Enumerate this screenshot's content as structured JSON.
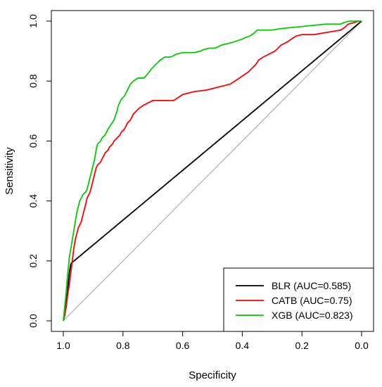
{
  "chart_data": {
    "type": "line",
    "title": "",
    "xlabel": "Specificity",
    "ylabel": "Sensitivity",
    "xlim": [
      1.0,
      0.0
    ],
    "ylim": [
      0.0,
      1.0
    ],
    "x_reversed": true,
    "x_ticks": [
      "1.0",
      "0.8",
      "0.6",
      "0.4",
      "0.2",
      "0.0"
    ],
    "y_ticks": [
      "0.0",
      "0.2",
      "0.4",
      "0.6",
      "0.8",
      "1.0"
    ],
    "grid": false,
    "legend_position": "bottom-right",
    "reference_line": {
      "from": [
        1.0,
        0.0
      ],
      "to": [
        0.0,
        1.0
      ],
      "color": "#a0a0a0"
    },
    "series": [
      {
        "name": "BLR (AUC=0.585)",
        "color": "#000000",
        "points": [
          [
            1.0,
            0.0
          ],
          [
            0.995,
            0.02
          ],
          [
            0.99,
            0.06
          ],
          [
            0.985,
            0.11
          ],
          [
            0.98,
            0.16
          ],
          [
            0.975,
            0.19
          ],
          [
            0.97,
            0.195
          ],
          [
            0.0,
            1.0
          ]
        ]
      },
      {
        "name": "CATB (AUC=0.75)",
        "color": "#ff0000",
        "points": [
          [
            1.0,
            0.0
          ],
          [
            0.995,
            0.02
          ],
          [
            0.99,
            0.05
          ],
          [
            0.985,
            0.09
          ],
          [
            0.98,
            0.12
          ],
          [
            0.975,
            0.16
          ],
          [
            0.97,
            0.2
          ],
          [
            0.965,
            0.24
          ],
          [
            0.96,
            0.27
          ],
          [
            0.955,
            0.29
          ],
          [
            0.95,
            0.31
          ],
          [
            0.94,
            0.33
          ],
          [
            0.935,
            0.35
          ],
          [
            0.93,
            0.37
          ],
          [
            0.925,
            0.39
          ],
          [
            0.92,
            0.41
          ],
          [
            0.91,
            0.43
          ],
          [
            0.905,
            0.45
          ],
          [
            0.9,
            0.47
          ],
          [
            0.895,
            0.49
          ],
          [
            0.89,
            0.51
          ],
          [
            0.885,
            0.52
          ],
          [
            0.875,
            0.53
          ],
          [
            0.87,
            0.54
          ],
          [
            0.865,
            0.55
          ],
          [
            0.86,
            0.56
          ],
          [
            0.85,
            0.57
          ],
          [
            0.845,
            0.58
          ],
          [
            0.835,
            0.59
          ],
          [
            0.83,
            0.6
          ],
          [
            0.82,
            0.61
          ],
          [
            0.81,
            0.62
          ],
          [
            0.805,
            0.63
          ],
          [
            0.795,
            0.64
          ],
          [
            0.79,
            0.65
          ],
          [
            0.785,
            0.66
          ],
          [
            0.775,
            0.67
          ],
          [
            0.765,
            0.69
          ],
          [
            0.755,
            0.7
          ],
          [
            0.745,
            0.71
          ],
          [
            0.73,
            0.72
          ],
          [
            0.71,
            0.73
          ],
          [
            0.7,
            0.735
          ],
          [
            0.63,
            0.735
          ],
          [
            0.615,
            0.745
          ],
          [
            0.6,
            0.755
          ],
          [
            0.56,
            0.765
          ],
          [
            0.52,
            0.77
          ],
          [
            0.48,
            0.78
          ],
          [
            0.44,
            0.79
          ],
          [
            0.425,
            0.8
          ],
          [
            0.41,
            0.81
          ],
          [
            0.395,
            0.82
          ],
          [
            0.38,
            0.83
          ],
          [
            0.37,
            0.84
          ],
          [
            0.355,
            0.855
          ],
          [
            0.345,
            0.87
          ],
          [
            0.33,
            0.88
          ],
          [
            0.31,
            0.89
          ],
          [
            0.29,
            0.9
          ],
          [
            0.27,
            0.92
          ],
          [
            0.25,
            0.93
          ],
          [
            0.235,
            0.94
          ],
          [
            0.22,
            0.95
          ],
          [
            0.2,
            0.955
          ],
          [
            0.16,
            0.955
          ],
          [
            0.13,
            0.96
          ],
          [
            0.1,
            0.965
          ],
          [
            0.07,
            0.97
          ],
          [
            0.055,
            0.98
          ],
          [
            0.045,
            0.99
          ],
          [
            0.025,
            0.995
          ],
          [
            0.01,
            1.0
          ],
          [
            0.0,
            1.0
          ]
        ]
      },
      {
        "name": "XGB (AUC=0.823)",
        "color": "#00cc00",
        "points": [
          [
            1.0,
            0.0
          ],
          [
            0.995,
            0.05
          ],
          [
            0.99,
            0.1
          ],
          [
            0.985,
            0.16
          ],
          [
            0.98,
            0.21
          ],
          [
            0.975,
            0.24
          ],
          [
            0.97,
            0.27
          ],
          [
            0.965,
            0.3
          ],
          [
            0.96,
            0.33
          ],
          [
            0.955,
            0.36
          ],
          [
            0.95,
            0.38
          ],
          [
            0.945,
            0.4
          ],
          [
            0.94,
            0.41
          ],
          [
            0.935,
            0.42
          ],
          [
            0.925,
            0.43
          ],
          [
            0.92,
            0.44
          ],
          [
            0.915,
            0.46
          ],
          [
            0.91,
            0.48
          ],
          [
            0.905,
            0.5
          ],
          [
            0.9,
            0.52
          ],
          [
            0.895,
            0.54
          ],
          [
            0.89,
            0.57
          ],
          [
            0.885,
            0.59
          ],
          [
            0.875,
            0.6
          ],
          [
            0.87,
            0.61
          ],
          [
            0.86,
            0.62
          ],
          [
            0.85,
            0.64
          ],
          [
            0.84,
            0.655
          ],
          [
            0.83,
            0.67
          ],
          [
            0.82,
            0.7
          ],
          [
            0.815,
            0.72
          ],
          [
            0.805,
            0.74
          ],
          [
            0.795,
            0.75
          ],
          [
            0.785,
            0.77
          ],
          [
            0.775,
            0.79
          ],
          [
            0.765,
            0.8
          ],
          [
            0.75,
            0.81
          ],
          [
            0.73,
            0.81
          ],
          [
            0.72,
            0.82
          ],
          [
            0.705,
            0.84
          ],
          [
            0.69,
            0.855
          ],
          [
            0.675,
            0.87
          ],
          [
            0.66,
            0.88
          ],
          [
            0.64,
            0.88
          ],
          [
            0.62,
            0.89
          ],
          [
            0.6,
            0.895
          ],
          [
            0.56,
            0.895
          ],
          [
            0.54,
            0.9
          ],
          [
            0.53,
            0.905
          ],
          [
            0.51,
            0.91
          ],
          [
            0.49,
            0.91
          ],
          [
            0.47,
            0.92
          ],
          [
            0.45,
            0.925
          ],
          [
            0.43,
            0.93
          ],
          [
            0.4,
            0.94
          ],
          [
            0.39,
            0.945
          ],
          [
            0.375,
            0.95
          ],
          [
            0.36,
            0.96
          ],
          [
            0.35,
            0.97
          ],
          [
            0.3,
            0.97
          ],
          [
            0.27,
            0.975
          ],
          [
            0.22,
            0.98
          ],
          [
            0.17,
            0.985
          ],
          [
            0.12,
            0.99
          ],
          [
            0.07,
            0.99
          ],
          [
            0.06,
            0.995
          ],
          [
            0.04,
            1.0
          ],
          [
            0.0,
            1.0
          ]
        ]
      }
    ]
  }
}
